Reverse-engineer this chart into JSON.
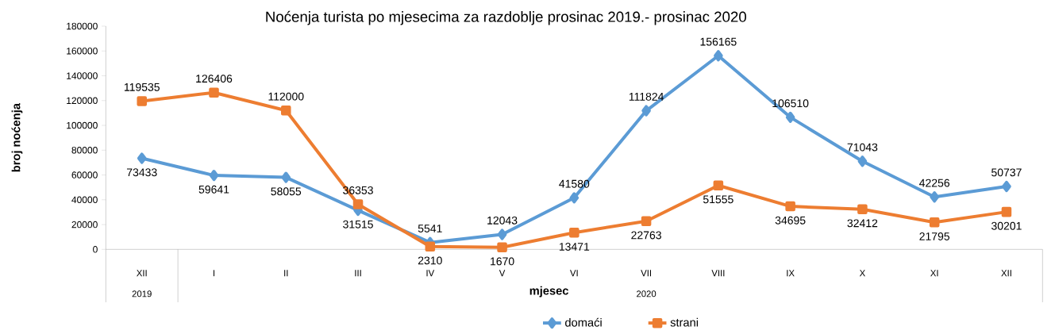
{
  "chart_data": {
    "type": "line",
    "title": "Noćenja turista po mjesecima za razdoblje  prosinac 2019.-  prosinac 2020",
    "xlabel": "mjesec",
    "ylabel": "broj noćenja",
    "categories": [
      "XII",
      "I",
      "II",
      "III",
      "IV",
      "V",
      "VI",
      "VII",
      "VIII",
      "IX",
      "X",
      "XI",
      "XII"
    ],
    "annotations": [
      "2019",
      "2020"
    ],
    "series": [
      {
        "name": "domaći",
        "color": "#5b9bd5",
        "marker": "diamond",
        "values": [
          73433,
          59641,
          58055,
          31515,
          5541,
          12043,
          41580,
          111824,
          156165,
          106510,
          71043,
          42256,
          50737
        ]
      },
      {
        "name": "strani",
        "color": "#ed7d31",
        "marker": "square",
        "values": [
          119535,
          126406,
          112000,
          36353,
          2310,
          1670,
          13471,
          22763,
          51555,
          34695,
          32412,
          21795,
          30201
        ]
      }
    ],
    "ylim": [
      0,
      180000
    ],
    "yticks": [
      0,
      20000,
      40000,
      60000,
      80000,
      100000,
      120000,
      140000,
      160000,
      180000
    ],
    "data_labels": true,
    "legend": "bottom",
    "grid": false
  }
}
